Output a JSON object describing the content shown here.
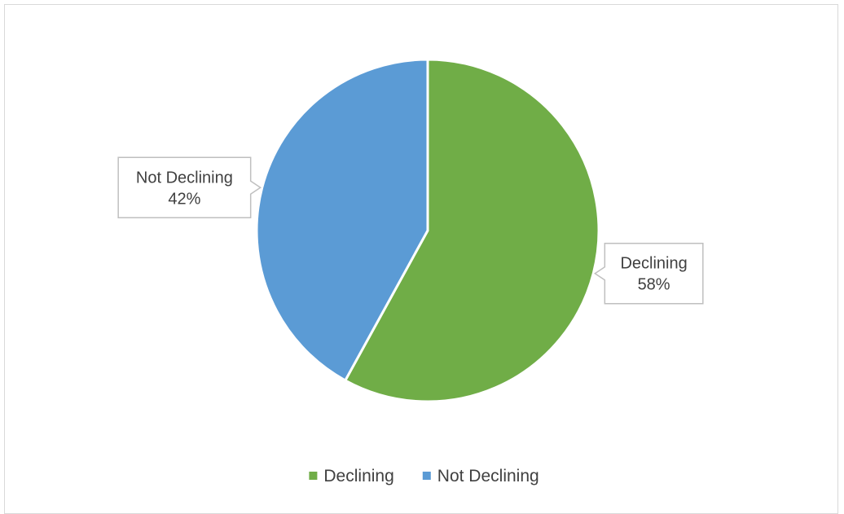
{
  "chart_data": {
    "type": "pie",
    "title": "",
    "categories": [
      "Declining",
      "Not Declining"
    ],
    "values": [
      58,
      42
    ],
    "value_labels": [
      "58%",
      "42%"
    ],
    "colors": [
      "#70ad47",
      "#5b9bd5"
    ],
    "legend": {
      "placement": "bottom",
      "entries": [
        "Declining",
        "Not Declining"
      ]
    }
  }
}
